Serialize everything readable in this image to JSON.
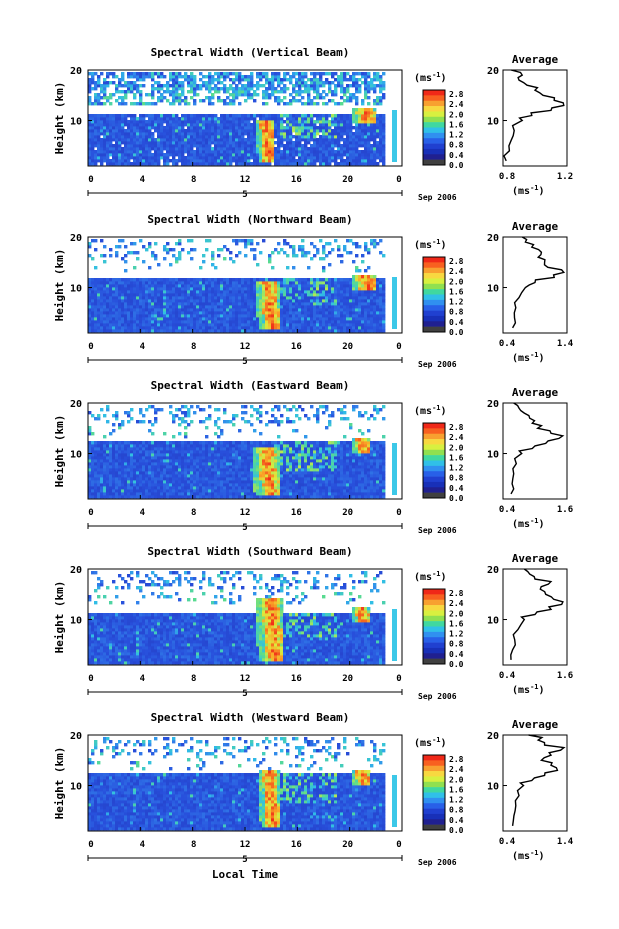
{
  "figure": {
    "xlabel": "Local Time",
    "xticks": [
      "0",
      "4",
      "8",
      "12",
      "16",
      "20",
      "0"
    ],
    "date_marker": "5",
    "date_label": "Sep 2006",
    "ylabel": "Height (km)",
    "yticks": [
      "20",
      "10"
    ],
    "colorbar_unit": "(ms",
    "colorbar_unit_exp": "-1",
    "colorbar_unit_close": ")",
    "colorbar_ticks": [
      "2.8",
      "2.4",
      "2.0",
      "1.6",
      "1.2",
      "0.8",
      "0.4",
      "0.0"
    ],
    "avg_title": "Average",
    "avg_xlabel": "(ms",
    "avg_xlabel_exp": "-1",
    "avg_xlabel_close": ")"
  },
  "colors": {
    "background_blue": "#2a4fd8",
    "low": "#1c35b8",
    "mid": "#30c8d0",
    "high": "#f03020",
    "colorbar": [
      "#f02818",
      "#f86020",
      "#f8a030",
      "#f8d840",
      "#d8f040",
      "#90e050",
      "#40d8a0",
      "#30c0e8",
      "#3090f0",
      "#2860e8",
      "#2040d0",
      "#1830b8",
      "#202090",
      "#404040"
    ]
  },
  "chart_data": [
    {
      "type": "heatmap",
      "title": "Spectral Width (Vertical Beam)",
      "xlabel": "Local Time",
      "ylabel": "Height (km)",
      "xlim": [
        0,
        24
      ],
      "ylim": [
        1,
        20
      ],
      "colorbar": {
        "label": "(ms-1)",
        "range": [
          0.0,
          3.0
        ],
        "ticks": [
          0.0,
          0.4,
          0.8,
          1.2,
          1.6,
          2.0,
          2.4,
          2.8
        ]
      },
      "features": [
        {
          "local_time_range": [
            12.8,
            14.2
          ],
          "height_range": [
            1.5,
            10
          ],
          "spectral_width": "2.0-3.0"
        },
        {
          "local_time_range": [
            20.0,
            22.0
          ],
          "height_range": [
            9,
            12
          ],
          "spectral_width": "1.6-2.8"
        },
        {
          "local_time_range": [
            0,
            24
          ],
          "height_range": [
            1,
            11
          ],
          "spectral_width": "0.4-0.8"
        }
      ],
      "average_profile": {
        "xlabel": "(ms-1)",
        "xticks": [
          0.8,
          1.2
        ],
        "xlim": [
          0.8,
          1.2
        ],
        "height": [
          2,
          4,
          6,
          8,
          10,
          11,
          12,
          13,
          14,
          15,
          16,
          17,
          18,
          19,
          20
        ],
        "value": [
          0.82,
          0.84,
          0.85,
          0.87,
          0.92,
          0.98,
          1.1,
          1.18,
          1.12,
          1.05,
          1.0,
          0.95,
          0.9,
          0.92,
          0.85
        ]
      }
    },
    {
      "type": "heatmap",
      "title": "Spectral Width (Northward Beam)",
      "xlabel": "Local Time",
      "ylabel": "Height (km)",
      "xlim": [
        0,
        24
      ],
      "ylim": [
        1,
        20
      ],
      "colorbar": {
        "label": "(ms-1)",
        "range": [
          0.0,
          3.0
        ],
        "ticks": [
          0.0,
          0.4,
          0.8,
          1.2,
          1.6,
          2.0,
          2.4,
          2.8
        ]
      },
      "features": [
        {
          "local_time_range": [
            12.8,
            14.5
          ],
          "height_range": [
            1.5,
            11
          ],
          "spectral_width": "2.0-3.0"
        },
        {
          "local_time_range": [
            20.0,
            22.0
          ],
          "height_range": [
            9,
            12
          ],
          "spectral_width": "1.6-2.8"
        }
      ],
      "average_profile": {
        "xlabel": "(ms-1)",
        "xticks": [
          0.4,
          1.4
        ],
        "xlim": [
          0.4,
          1.4
        ],
        "height": [
          2,
          4,
          6,
          8,
          10,
          11,
          12,
          13,
          14,
          15,
          16,
          17,
          18,
          19,
          20
        ],
        "value": [
          0.55,
          0.58,
          0.6,
          0.65,
          0.75,
          0.9,
          1.2,
          1.35,
          1.1,
          1.05,
          0.95,
          1.0,
          0.85,
          0.75,
          0.7
        ]
      }
    },
    {
      "type": "heatmap",
      "title": "Spectral Width (Eastward Beam)",
      "xlabel": "Local Time",
      "ylabel": "Height (km)",
      "xlim": [
        0,
        24
      ],
      "ylim": [
        1,
        20
      ],
      "colorbar": {
        "label": "(ms-1)",
        "range": [
          0.0,
          3.0
        ],
        "ticks": [
          0.0,
          0.4,
          0.8,
          1.2,
          1.6,
          2.0,
          2.4,
          2.8
        ]
      },
      "features": [
        {
          "local_time_range": [
            12.5,
            14.5
          ],
          "height_range": [
            1.5,
            11
          ],
          "spectral_width": "2.0-3.0"
        },
        {
          "local_time_range": [
            20.0,
            21.5
          ],
          "height_range": [
            10,
            13
          ],
          "spectral_width": "1.6-2.8"
        }
      ],
      "average_profile": {
        "xlabel": "(ms-1)",
        "xticks": [
          0.4,
          1.6
        ],
        "xlim": [
          0.4,
          1.6
        ],
        "height": [
          2,
          4,
          6,
          8,
          10,
          11,
          12,
          13,
          14,
          15,
          16,
          17,
          18,
          19,
          20
        ],
        "value": [
          0.55,
          0.57,
          0.6,
          0.65,
          0.75,
          0.95,
          1.2,
          1.45,
          1.3,
          1.05,
          0.95,
          0.9,
          0.8,
          0.7,
          0.6
        ]
      }
    },
    {
      "type": "heatmap",
      "title": "Spectral Width (Southward Beam)",
      "xlabel": "Local Time",
      "ylabel": "Height (km)",
      "xlim": [
        0,
        24
      ],
      "ylim": [
        1,
        20
      ],
      "colorbar": {
        "label": "(ms-1)",
        "range": [
          0.0,
          3.0
        ],
        "ticks": [
          0.0,
          0.4,
          0.8,
          1.2,
          1.6,
          2.0,
          2.4,
          2.8
        ]
      },
      "features": [
        {
          "local_time_range": [
            12.8,
            14.8
          ],
          "height_range": [
            1.5,
            14
          ],
          "spectral_width": "2.0-3.0"
        },
        {
          "local_time_range": [
            20.0,
            21.5
          ],
          "height_range": [
            9,
            12
          ],
          "spectral_width": "1.6-2.8"
        }
      ],
      "average_profile": {
        "xlabel": "(ms-1)",
        "xticks": [
          0.4,
          1.6
        ],
        "xlim": [
          0.4,
          1.6
        ],
        "height": [
          2,
          4,
          6,
          8,
          10,
          11,
          12,
          13,
          14,
          15,
          16,
          17,
          18,
          19,
          20
        ],
        "value": [
          0.55,
          0.58,
          0.62,
          0.68,
          0.8,
          1.0,
          1.3,
          1.5,
          1.35,
          1.2,
          1.1,
          1.25,
          1.0,
          0.9,
          0.8
        ]
      }
    },
    {
      "type": "heatmap",
      "title": "Spectral Width (Westward Beam)",
      "xlabel": "Local Time",
      "ylabel": "Height (km)",
      "xlim": [
        0,
        24
      ],
      "ylim": [
        1,
        20
      ],
      "colorbar": {
        "label": "(ms-1)",
        "range": [
          0.0,
          3.0
        ],
        "ticks": [
          0.0,
          0.4,
          0.8,
          1.2,
          1.6,
          2.0,
          2.4,
          2.8
        ]
      },
      "features": [
        {
          "local_time_range": [
            13.0,
            14.5
          ],
          "height_range": [
            1.5,
            13
          ],
          "spectral_width": "2.0-3.0"
        },
        {
          "local_time_range": [
            20.0,
            21.5
          ],
          "height_range": [
            10,
            13
          ],
          "spectral_width": "1.6-2.8"
        }
      ],
      "average_profile": {
        "xlabel": "(ms-1)",
        "xticks": [
          0.4,
          1.4
        ],
        "xlim": [
          0.4,
          1.4
        ],
        "height": [
          2,
          4,
          6,
          8,
          10,
          11,
          12,
          13,
          14,
          15,
          16,
          17,
          18,
          19,
          20
        ],
        "value": [
          0.55,
          0.57,
          0.6,
          0.65,
          0.72,
          0.85,
          1.05,
          1.25,
          1.15,
          1.0,
          1.15,
          1.3,
          1.05,
          0.95,
          0.8
        ]
      }
    }
  ]
}
